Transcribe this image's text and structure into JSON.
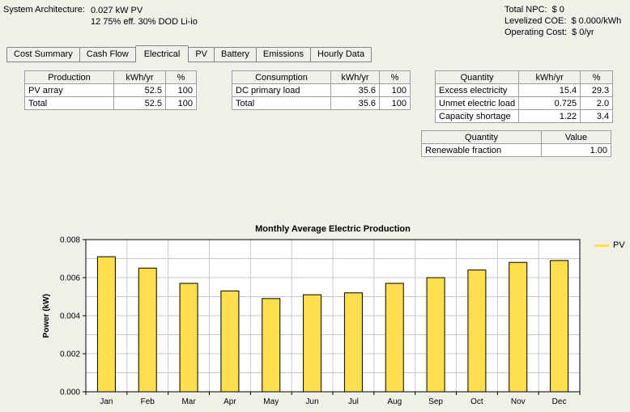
{
  "header": {
    "system_architecture": {
      "label": "System Architecture:",
      "lines": [
        "0.027 kW PV",
        "12 75% eff. 30% DOD Li-io"
      ]
    },
    "metrics": [
      {
        "label": "Total NPC:",
        "value": "$ 0"
      },
      {
        "label": "Levelized COE:",
        "value": "$ 0.000/kWh"
      },
      {
        "label": "Operating Cost:",
        "value": "$ 0/yr"
      }
    ]
  },
  "tabs": {
    "items": [
      {
        "label": "Cost Summary",
        "active": false
      },
      {
        "label": "Cash Flow",
        "active": false
      },
      {
        "label": "Electrical",
        "active": true
      },
      {
        "label": "PV",
        "active": false
      },
      {
        "label": "Battery",
        "active": false
      },
      {
        "label": "Emissions",
        "active": false
      },
      {
        "label": "Hourly Data",
        "active": false
      }
    ]
  },
  "tables": {
    "production": {
      "headers": [
        "Production",
        "kWh/yr",
        "%"
      ],
      "rows": [
        [
          "PV array",
          "52.5",
          "100"
        ],
        [
          "Total",
          "52.5",
          "100"
        ]
      ]
    },
    "consumption": {
      "headers": [
        "Consumption",
        "kWh/yr",
        "%"
      ],
      "rows": [
        [
          "DC primary load",
          "35.6",
          "100"
        ],
        [
          "Total",
          "35.6",
          "100"
        ]
      ]
    },
    "quantities": {
      "headers": [
        "Quantity",
        "kWh/yr",
        "%"
      ],
      "rows": [
        [
          "Excess electricity",
          "15.4",
          "29.3"
        ],
        [
          "Unmet electric load",
          "0.725",
          "2.0"
        ],
        [
          "Capacity shortage",
          "1.22",
          "3.4"
        ]
      ]
    },
    "renewable": {
      "headers": [
        "Quantity",
        "Value"
      ],
      "rows": [
        [
          "Renewable fraction",
          "1.00"
        ]
      ]
    }
  },
  "chart_data": {
    "type": "bar",
    "title": "Monthly Average Electric Production",
    "xlabel": "",
    "ylabel": "Power (kW)",
    "categories": [
      "Jan",
      "Feb",
      "Mar",
      "Apr",
      "May",
      "Jun",
      "Jul",
      "Aug",
      "Sep",
      "Oct",
      "Nov",
      "Dec"
    ],
    "series": [
      {
        "name": "PV",
        "color": "#FFDF4D",
        "values": [
          0.0071,
          0.0065,
          0.0057,
          0.0053,
          0.0049,
          0.0051,
          0.0052,
          0.0057,
          0.006,
          0.0064,
          0.0068,
          0.0069
        ]
      }
    ],
    "ylim": [
      0,
      0.008
    ],
    "ytick_step": 0.002,
    "ytick_decimals": 3,
    "grid_step": 0.001,
    "grid": true,
    "grid_color": "#c9c9c9",
    "plot_bg": "#ffffff",
    "legend_position": "right"
  }
}
